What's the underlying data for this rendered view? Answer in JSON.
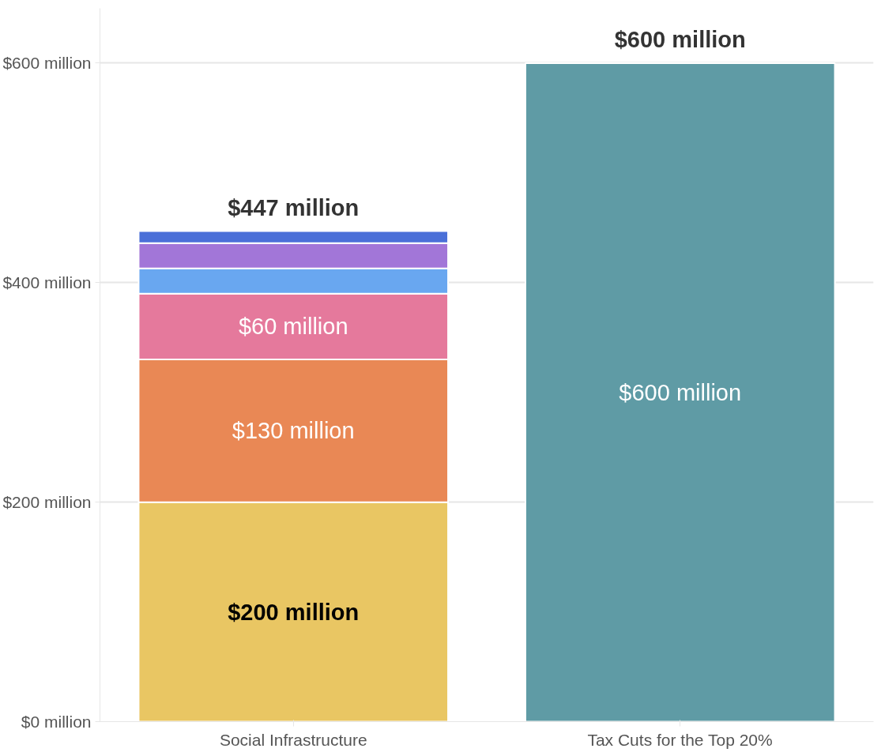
{
  "chart_data": {
    "type": "bar",
    "stacked": true,
    "categories": [
      "Social Infrastructure",
      "Tax Cuts for the Top 20%"
    ],
    "series": [
      {
        "color": "#e9c663",
        "values": [
          200,
          null
        ],
        "value_labels": [
          "$200 million",
          null
        ]
      },
      {
        "color": "#e98855",
        "values": [
          130,
          null
        ],
        "value_labels": [
          "$130 million",
          null
        ]
      },
      {
        "color": "#e5799c",
        "values": [
          60,
          null
        ],
        "value_labels": [
          "$60 million",
          null
        ]
      },
      {
        "color": "#69a7f0",
        "values": [
          23,
          null
        ]
      },
      {
        "color": "#a276d8",
        "values": [
          23,
          null
        ]
      },
      {
        "color": "#4a6fd8",
        "values": [
          11,
          null
        ]
      },
      {
        "color": "#5f9ba5",
        "values": [
          null,
          600
        ],
        "value_labels": [
          null,
          "$600 million"
        ]
      }
    ],
    "totals": [
      "$447 million",
      "$600 million"
    ],
    "ylim": [
      0,
      650
    ],
    "yticks": [
      {
        "value": 0,
        "label": "$0 million"
      },
      {
        "value": 200,
        "label": "$200 million"
      },
      {
        "value": 400,
        "label": "$400 million"
      },
      {
        "value": 600,
        "label": "$600 million"
      }
    ],
    "grid": "y"
  }
}
